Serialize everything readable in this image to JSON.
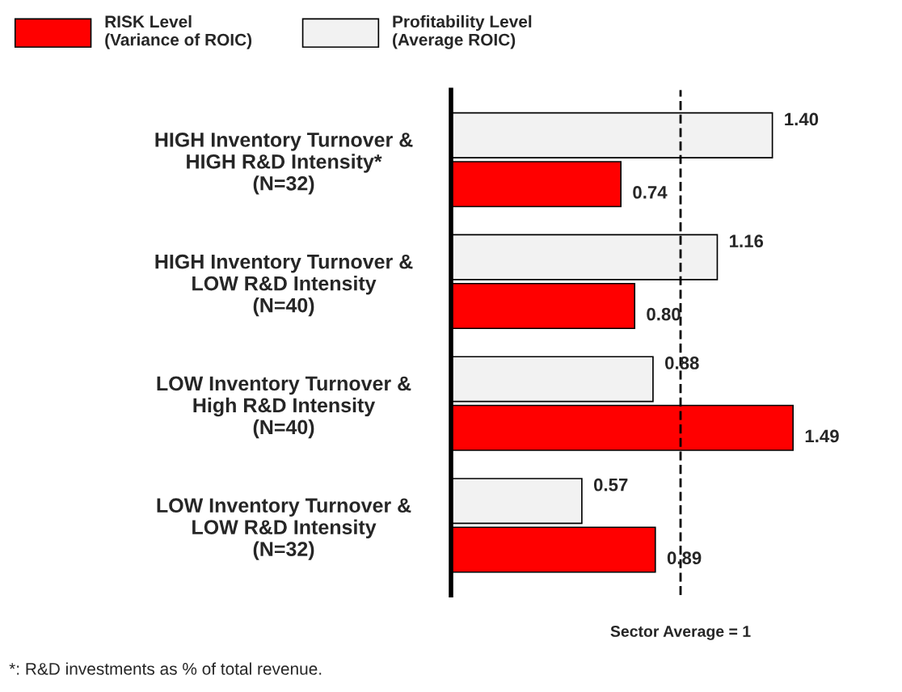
{
  "chart_data": {
    "type": "bar",
    "orientation": "horizontal",
    "categories": [
      "HIGH Inventory Turnover &\nHIGH R&D Intensity*\n(N=32)",
      "HIGH Inventory Turnover &\nLOW R&D Intensity\n(N=40)",
      "LOW Inventory Turnover &\nHigh R&D Intensity\n(N=40)",
      "LOW Inventory Turnover &\nLOW R&D Intensity\n(N=32)"
    ],
    "series": [
      {
        "name": "Profitability Level\n(Average ROIC)",
        "color": "#f2f2f2",
        "values": [
          1.4,
          1.16,
          0.88,
          0.57
        ],
        "value_labels": [
          "1.40",
          "1.16",
          "0.88",
          "0.57"
        ]
      },
      {
        "name": "RISK Level\n(Variance of ROIC)",
        "color": "#ff0000",
        "values": [
          0.74,
          0.8,
          1.49,
          0.89
        ],
        "value_labels": [
          "0.74",
          "0.80",
          "1.49",
          "0.89"
        ]
      }
    ],
    "tick_labels": false,
    "legend": "top left",
    "grid": false,
    "ref_lines": [
      {
        "axis": "x",
        "value": 1,
        "label": "Sector Average = 1",
        "line_style": "dashed",
        "color": "#000000"
      }
    ],
    "annotations": [
      "*: R&D investments as % of total revenue."
    ]
  }
}
